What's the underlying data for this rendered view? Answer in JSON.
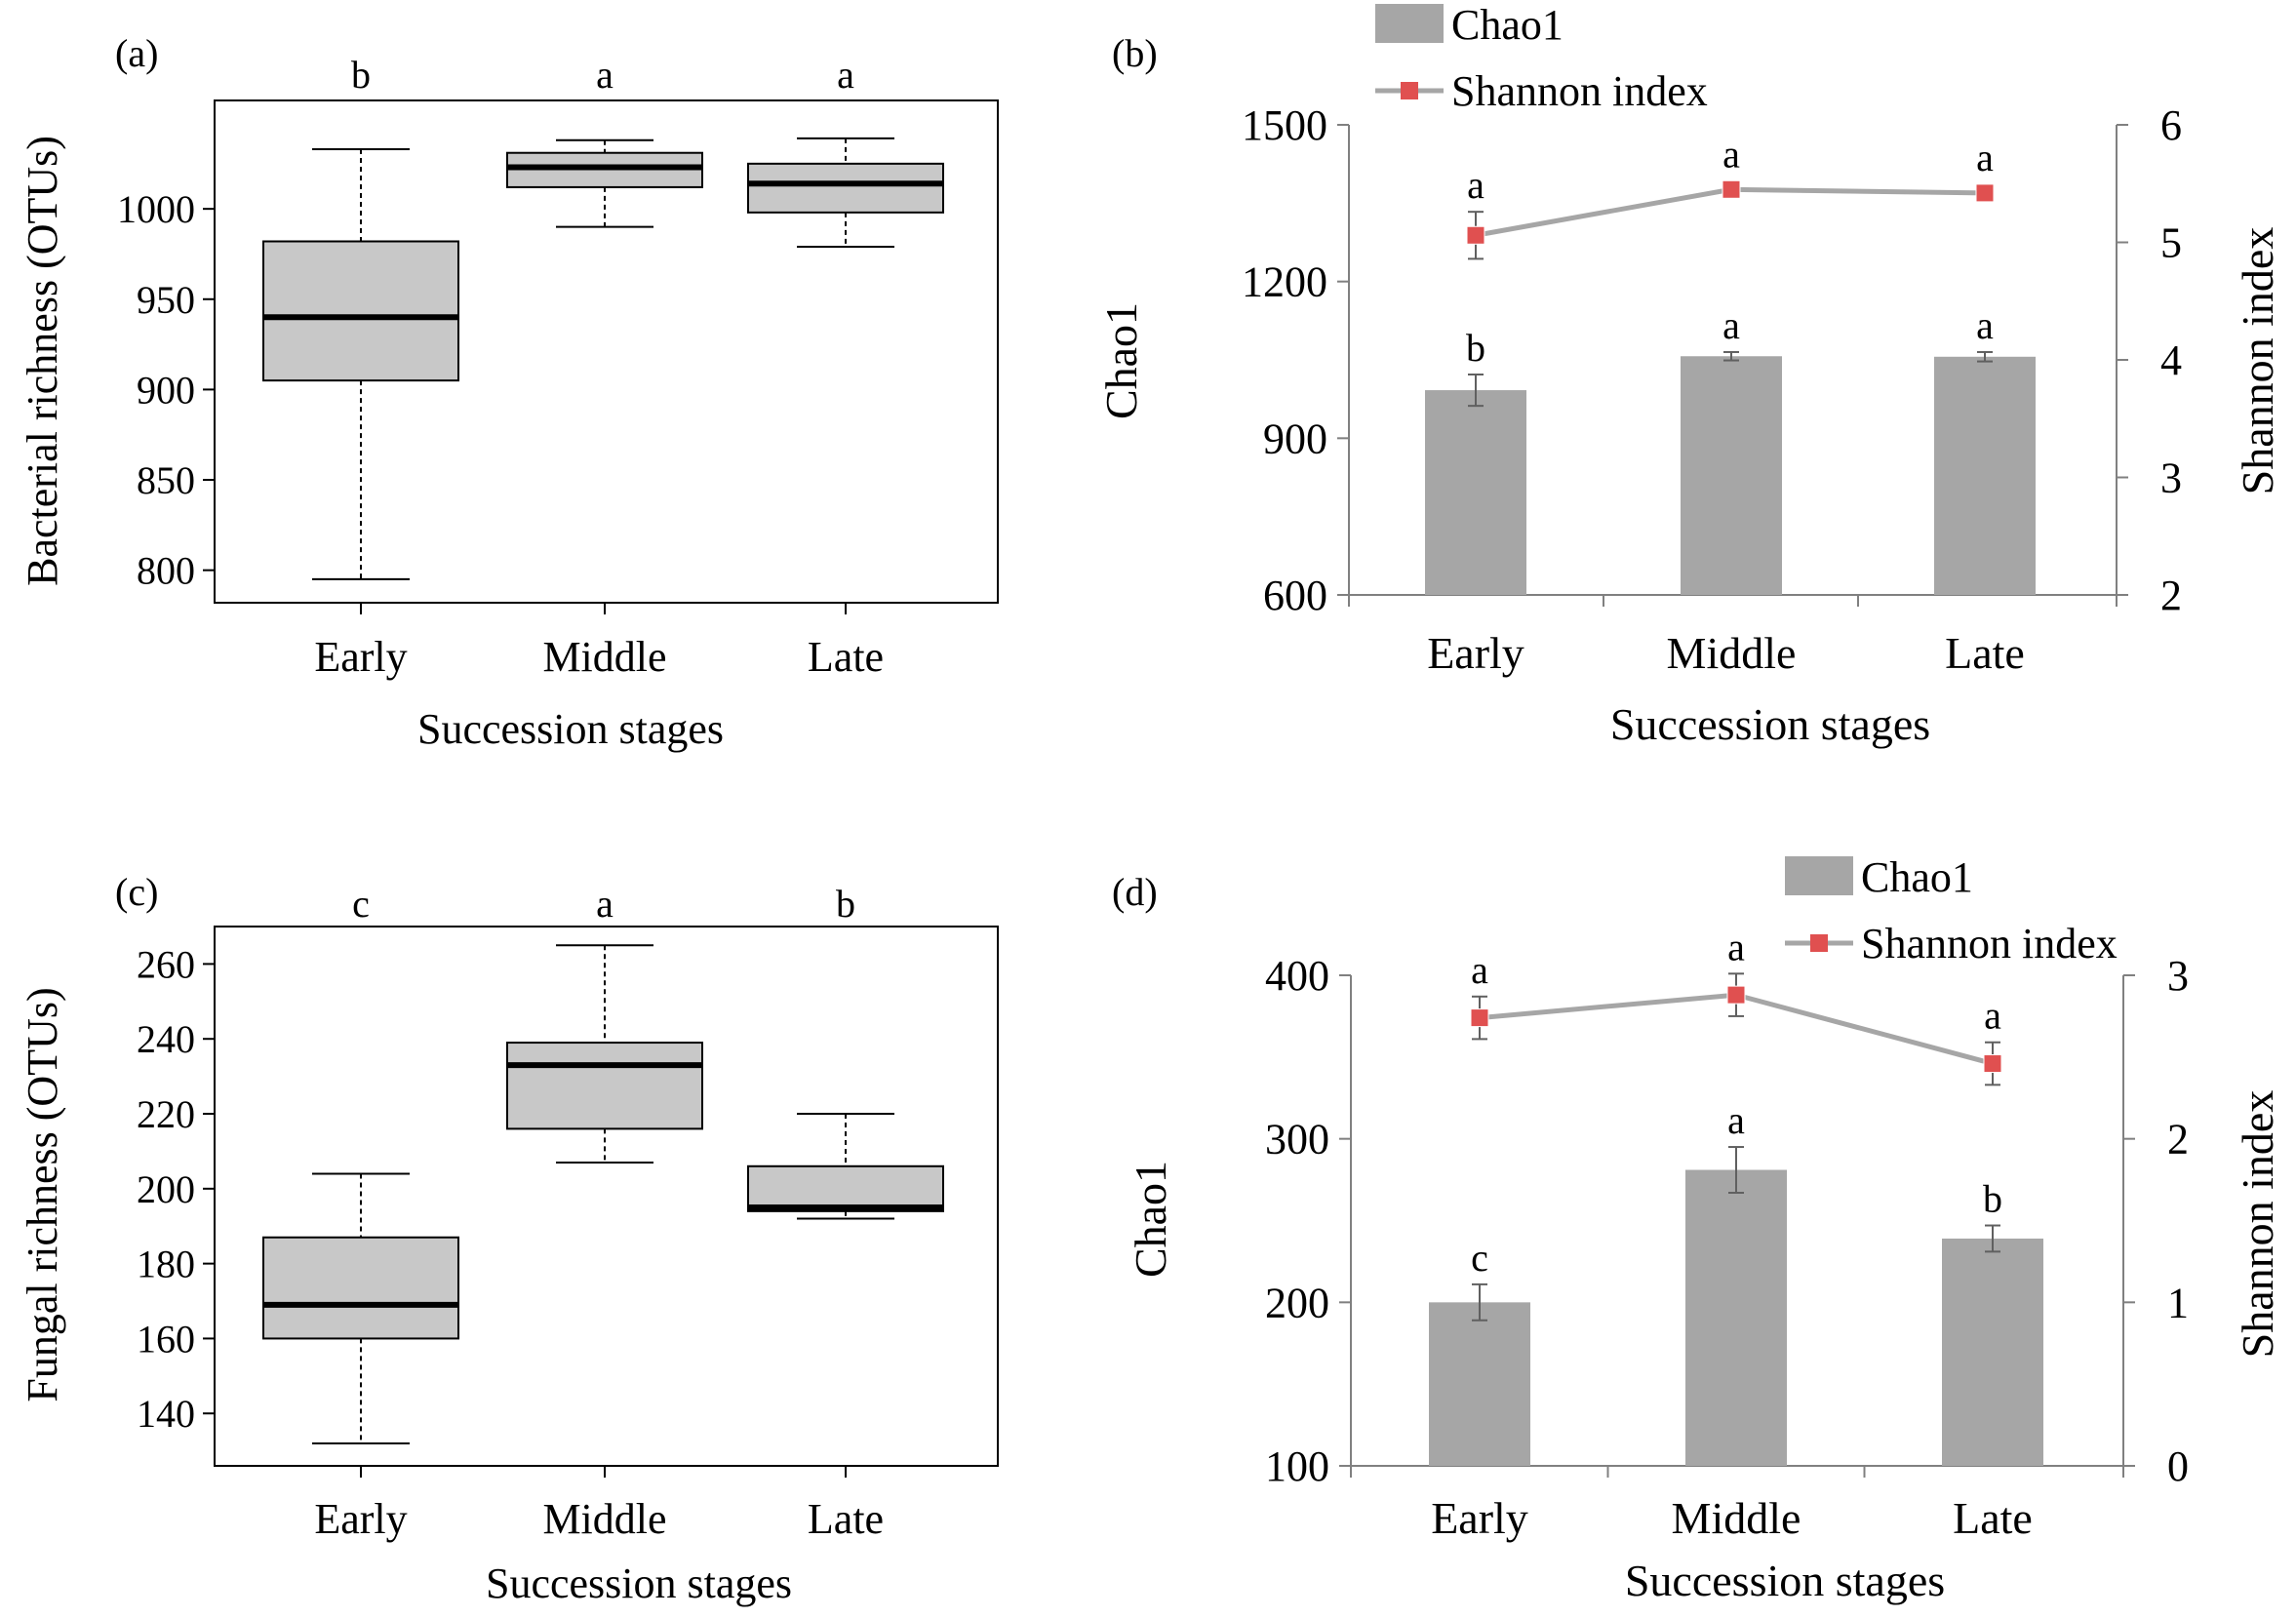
{
  "colors": {
    "box_fill": "#c8c8c8",
    "bar_fill": "#a6a6a6",
    "line": "#a6a6a6",
    "marker": "#e05050",
    "axis": "#000000",
    "bar_axis": "#808080"
  },
  "chart_data": [
    {
      "panel": "(a)",
      "type": "box",
      "xlabel": "Succession stages",
      "ylabel": "Bacterial richness (OTUs)",
      "ylim": [
        782,
        1060
      ],
      "yticks": [
        800,
        850,
        900,
        950,
        1000
      ],
      "categories": [
        "Early",
        "Middle",
        "Late"
      ],
      "boxes": [
        {
          "min": 795,
          "q1": 905,
          "median": 940,
          "q3": 982,
          "max": 1033
        },
        {
          "min": 990,
          "q1": 1012,
          "median": 1023,
          "q3": 1031,
          "max": 1038
        },
        {
          "min": 979,
          "q1": 998,
          "median": 1014,
          "q3": 1025,
          "max": 1039
        }
      ],
      "letters": [
        "b",
        "a",
        "a"
      ]
    },
    {
      "panel": "(b)",
      "type": "bar+line",
      "xlabel": "Succession stages",
      "ylabel": "Chao1",
      "y2label": "Shannon index",
      "ylim": [
        600,
        1500
      ],
      "yticks": [
        600,
        900,
        1200,
        1500
      ],
      "y2lim": [
        2,
        6
      ],
      "y2ticks": [
        2,
        3,
        4,
        5,
        6
      ],
      "categories": [
        "Early",
        "Middle",
        "Late"
      ],
      "legend": [
        "Chao1",
        "Shannon index"
      ],
      "legend_position": "top",
      "series": [
        {
          "name": "Chao1",
          "kind": "bar",
          "values": [
            992,
            1057,
            1056
          ],
          "errors": [
            30,
            8,
            9
          ],
          "letters": [
            "b",
            "a",
            "a"
          ]
        },
        {
          "name": "Shannon index",
          "kind": "line",
          "values": [
            5.06,
            5.45,
            5.42
          ],
          "errors": [
            0.2,
            0.02,
            0.02
          ],
          "letters": [
            "a",
            "a",
            "a"
          ]
        }
      ]
    },
    {
      "panel": "(c)",
      "type": "box",
      "xlabel": "Succession stages",
      "ylabel": "Fungal richness (OTUs)",
      "ylim": [
        126,
        270
      ],
      "yticks": [
        140,
        160,
        180,
        200,
        220,
        240,
        260
      ],
      "categories": [
        "Early",
        "Middle",
        "Late"
      ],
      "boxes": [
        {
          "min": 132,
          "q1": 160,
          "median": 169,
          "q3": 187,
          "max": 204
        },
        {
          "min": 207,
          "q1": 216,
          "median": 233,
          "q3": 239,
          "max": 265
        },
        {
          "min": 192,
          "q1": 194,
          "median": 195,
          "q3": 206,
          "max": 220
        }
      ],
      "letters": [
        "c",
        "a",
        "b"
      ]
    },
    {
      "panel": "(d)",
      "type": "bar+line",
      "xlabel": "Succession stages",
      "ylabel": "Chao1",
      "y2label": "Shannon index",
      "ylim": [
        100,
        400
      ],
      "yticks": [
        100,
        200,
        300,
        400
      ],
      "y2lim": [
        0,
        3
      ],
      "y2ticks": [
        0,
        1,
        2,
        3
      ],
      "categories": [
        "Early",
        "Middle",
        "Late"
      ],
      "legend": [
        "Chao1",
        "Shannon index"
      ],
      "legend_position": "top-right",
      "series": [
        {
          "name": "Chao1",
          "kind": "bar",
          "values": [
            200,
            281,
            239
          ],
          "errors": [
            11,
            14,
            8
          ],
          "letters": [
            "c",
            "a",
            "b"
          ]
        },
        {
          "name": "Shannon index",
          "kind": "line",
          "values": [
            2.74,
            2.88,
            2.46
          ],
          "errors": [
            0.13,
            0.13,
            0.13
          ],
          "letters": [
            "a",
            "a",
            "a"
          ]
        }
      ]
    }
  ]
}
